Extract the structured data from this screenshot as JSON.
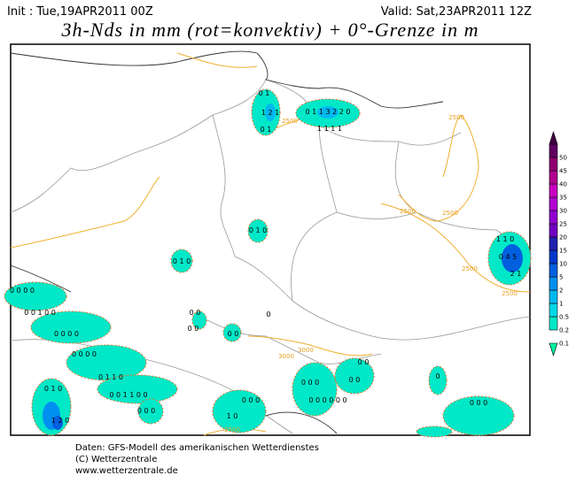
{
  "header": {
    "init": "Init : Tue,19APR2011 00Z",
    "valid": "Valid: Sat,23APR2011 12Z",
    "title": "3h-Nds in mm (rot=konvektiv) + 0°-Grenze in m"
  },
  "legend": {
    "levels": [
      0.1,
      0.2,
      0.5,
      1,
      2,
      5,
      10,
      15,
      20,
      25,
      30,
      35,
      40,
      45,
      50
    ],
    "colors": [
      "#00f0a0",
      "#00e8c8",
      "#00d8e8",
      "#00b8f0",
      "#0090f0",
      "#0060e0",
      "#0038c8",
      "#2020b0",
      "#7000c0",
      "#9000d0",
      "#b000d0",
      "#c800c0",
      "#b00090",
      "#900070",
      "#600060",
      "#400040"
    ]
  },
  "map": {
    "contour_labels": [
      "2500",
      "2500",
      "2500",
      "2500",
      "2500",
      "2500",
      "3000",
      "3000",
      "2500"
    ],
    "cells": [
      "0 1",
      "1 2 1",
      "0 1",
      "0 1 1 3 2 2 0",
      "1 1 1 1",
      "0 1 0",
      "0 1 0",
      "0 0 0 0",
      "0 0 1 0 0",
      "0 0 0 0",
      "0 0 0 0",
      "0 1 1 0",
      "0 0 1 1 0 0",
      "0 0",
      "0 0",
      "0 0",
      "0",
      "0 1 0",
      "1 2 0",
      "0 0 0",
      "1 0",
      "0 0 0",
      "0 0 0 0 0 0",
      "0 0 0",
      "0 0",
      "0 0",
      "0",
      "0 0 0",
      "1 1 0",
      "0 4 5",
      "2 1"
    ]
  },
  "footer": {
    "lines": [
      "Daten: GFS-Modell des amerikanischen Wetterdienstes",
      "(C) Wetterzentrale",
      "www.wetterzentrale.de"
    ]
  }
}
